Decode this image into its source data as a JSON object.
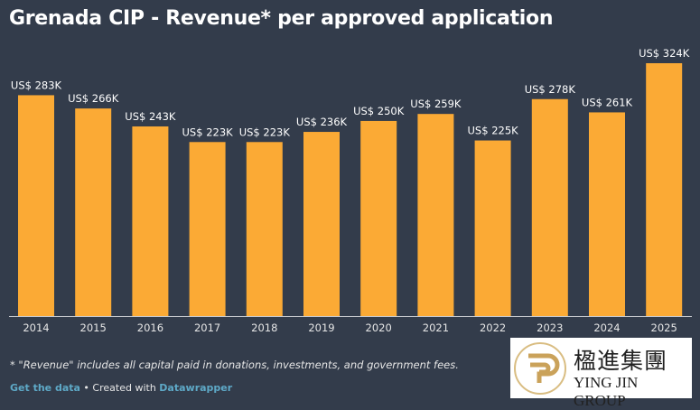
{
  "title": "Grenada CIP - Revenue* per approved application",
  "chart_data": {
    "type": "bar",
    "title": "Grenada CIP - Revenue* per approved application",
    "categories": [
      "2014",
      "2015",
      "2016",
      "2017",
      "2018",
      "2019",
      "2020",
      "2021",
      "2022",
      "2023",
      "2024",
      "2025"
    ],
    "values": [
      283,
      266,
      243,
      223,
      223,
      236,
      250,
      259,
      225,
      278,
      261,
      324
    ],
    "labels": [
      "US$ 283K",
      "US$ 266K",
      "US$ 243K",
      "US$ 223K",
      "US$ 223K",
      "US$ 236K",
      "US$ 250K",
      "US$ 259K",
      "US$ 225K",
      "US$ 278K",
      "US$ 261K",
      "US$ 324K"
    ],
    "unit": "US$ thousands",
    "ylim": [
      0,
      324
    ],
    "grid": false,
    "bar_color": "#fbaa35"
  },
  "footnote": "* \"Revenue\" includes all capital paid in donations, investments, and government fees.",
  "source": {
    "get_data": "Get the data",
    "sep": " • Created with ",
    "tool": "Datawrapper"
  },
  "logo": {
    "cn": "楹進集團",
    "en": "YING JIN GROUP"
  }
}
